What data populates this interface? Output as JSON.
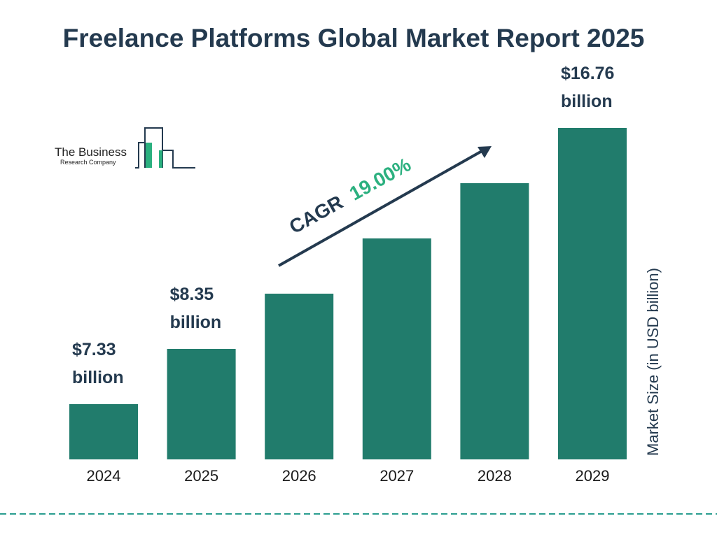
{
  "chart_data": {
    "type": "bar",
    "title": "Freelance Platforms Global Market Report 2025",
    "ylabel": "Market Size (in USD billion)",
    "xlabel": "",
    "categories": [
      "2024",
      "2025",
      "2026",
      "2027",
      "2028",
      "2029"
    ],
    "values": [
      7.33,
      8.35,
      9.94,
      11.83,
      14.07,
      16.76
    ],
    "data_labels": [
      "$7.33 billion",
      "$8.35 billion",
      "",
      "",
      "",
      "$16.76 billion"
    ],
    "data_label_lines": [
      [
        "$7.33",
        "billion"
      ],
      [
        "$8.35",
        "billion"
      ],
      [],
      [],
      [],
      [
        "$16.76",
        "billion"
      ]
    ],
    "annotation": {
      "prefix": "CAGR",
      "value": "19.00%"
    },
    "grid": false,
    "legend": "none",
    "colors": {
      "bar": "#217c6c",
      "title": "#243a4f",
      "cagr_value": "#2bb07f",
      "arrow": "#243a4f",
      "divider": "#2a9d8f"
    }
  },
  "logo": {
    "line1": "The Business",
    "line2": "Research Company"
  }
}
